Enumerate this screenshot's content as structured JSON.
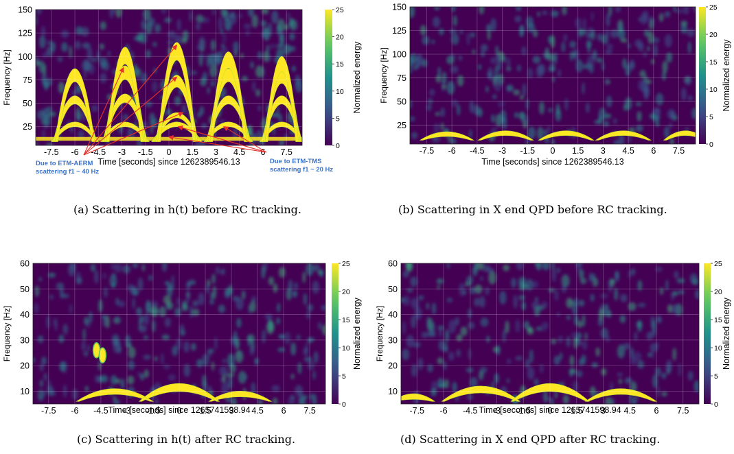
{
  "panels": [
    {
      "id": "a",
      "caption": "(a) Scattering in h(t) before RC tracking.",
      "xlabel": "Time [seconds] since 1262389546.13",
      "ylabel": "Frequency [Hz]",
      "colorbar_label": "Normalized energy",
      "annotations": [
        {
          "lines": [
            "Due to ETM-AERM",
            "scattering f1 ~ 40 Hz"
          ]
        },
        {
          "lines": [
            "Due to ETM-TMS",
            "scattering f1 ~ 20 Hz"
          ]
        }
      ]
    },
    {
      "id": "b",
      "caption": "(b) Scattering in X end QPD before RC tracking.",
      "xlabel": "Time [seconds] since 1262389546.13",
      "ylabel": "Frequency [Hz]",
      "colorbar_label": "Normalized energy"
    },
    {
      "id": "c",
      "caption": "(c) Scattering in h(t) after RC tracking.",
      "xlabel": "Time [seconds] since 1265741598.94",
      "ylabel": "Frequency [Hz]",
      "colorbar_label": "Normalized energy"
    },
    {
      "id": "d",
      "caption": "(d) Scattering in X end QPD after RC tracking.",
      "xlabel": "Time [seconds] since 1265741598.94",
      "ylabel": "Frequency [Hz]",
      "colorbar_label": "Normalized energy"
    }
  ],
  "chart_data": [
    {
      "type": "heatmap",
      "xlabel": "Time [seconds] since 1262389546.13",
      "ylabel": "Frequency [Hz]",
      "x_ticks": [
        "-7.5",
        "-6",
        "-4.5",
        "-3",
        "-1.5",
        "0",
        "1.5",
        "3",
        "4.5",
        "6",
        "7.5"
      ],
      "y_ticks": [
        "25",
        "50",
        "75",
        "100",
        "125",
        "150"
      ],
      "xlim": [
        -8.5,
        8.5
      ],
      "ylim": [
        5,
        150
      ],
      "colorbar_ticks": [
        "0",
        "5",
        "10",
        "15",
        "20",
        "25"
      ],
      "colorbar_range": [
        0,
        25
      ],
      "colorbar_label": "Normalized energy",
      "colormap": "viridis",
      "arches": [
        {
          "center": -6.0,
          "half_width": 1.5,
          "harmonic_peaks_hz": [
            30,
            58,
            87
          ]
        },
        {
          "center": -2.8,
          "half_width": 1.55,
          "harmonic_peaks_hz": [
            30,
            60,
            90,
            110
          ]
        },
        {
          "center": 0.5,
          "half_width": 1.6,
          "harmonic_peaks_hz": [
            30,
            40,
            80,
            115
          ]
        },
        {
          "center": 3.8,
          "half_width": 1.55,
          "harmonic_peaks_hz": [
            30,
            58,
            87,
            105
          ]
        },
        {
          "center": 7.2,
          "half_width": 1.4,
          "harmonic_peaks_hz": [
            30,
            58,
            85,
            100
          ]
        }
      ],
      "baseline_band_hz": 12
    },
    {
      "type": "heatmap",
      "xlabel": "Time [seconds] since 1262389546.13",
      "ylabel": "Frequency [Hz]",
      "x_ticks": [
        "-7.5",
        "-6",
        "-4.5",
        "-3",
        "-1.5",
        "0",
        "1.5",
        "3",
        "4.5",
        "6",
        "7.5"
      ],
      "y_ticks": [
        "25",
        "50",
        "75",
        "100",
        "125",
        "150"
      ],
      "xlim": [
        -8.5,
        8.5
      ],
      "ylim": [
        5,
        150
      ],
      "colorbar_ticks": [
        "0",
        "5",
        "10",
        "15",
        "20",
        "25"
      ],
      "colorbar_range": [
        0,
        25
      ],
      "colorbar_label": "Normalized energy",
      "colormap": "viridis",
      "arches": [
        {
          "center": -6.3,
          "half_width": 1.6,
          "harmonic_peaks_hz": [
            18
          ]
        },
        {
          "center": -2.8,
          "half_width": 1.65,
          "harmonic_peaks_hz": [
            19
          ]
        },
        {
          "center": 0.8,
          "half_width": 1.65,
          "harmonic_peaks_hz": [
            19
          ]
        },
        {
          "center": 4.2,
          "half_width": 1.65,
          "harmonic_peaks_hz": [
            19
          ]
        },
        {
          "center": 7.9,
          "half_width": 1.3,
          "harmonic_peaks_hz": [
            19
          ]
        }
      ]
    },
    {
      "type": "heatmap",
      "xlabel": "Time [seconds] since 1265741598.94",
      "ylabel": "Frequency [Hz]",
      "x_ticks": [
        "-7.5",
        "-6",
        "-4.5",
        "-3",
        "-1.5",
        "0",
        "1.5",
        "3",
        "4.5",
        "6",
        "7.5"
      ],
      "y_ticks": [
        "10",
        "20",
        "30",
        "40",
        "50",
        "60"
      ],
      "xlim": [
        -8.4,
        8.4
      ],
      "ylim": [
        5,
        60
      ],
      "colorbar_ticks": [
        "0",
        "5",
        "10",
        "15",
        "20",
        "25"
      ],
      "colorbar_range": [
        0,
        25
      ],
      "colorbar_label": "Normalized energy",
      "colormap": "viridis",
      "arches": [
        {
          "center": -3.7,
          "half_width": 2.2,
          "harmonic_peaks_hz": [
            11
          ]
        },
        {
          "center": 0.0,
          "half_width": 2.3,
          "harmonic_peaks_hz": [
            13
          ]
        },
        {
          "center": 3.5,
          "half_width": 1.8,
          "harmonic_peaks_hz": [
            10
          ]
        }
      ],
      "hotspots": [
        {
          "t": -4.75,
          "f": 26
        },
        {
          "t": -4.4,
          "f": 24
        }
      ]
    },
    {
      "type": "heatmap",
      "xlabel": "Time [seconds] since 1265741598.94",
      "ylabel": "Frequency [Hz]",
      "x_ticks": [
        "-7.5",
        "-6",
        "-4.5",
        "-3",
        "-1.5",
        "0",
        "1.5",
        "3",
        "4.5",
        "6",
        "7.5"
      ],
      "y_ticks": [
        "10",
        "20",
        "30",
        "40",
        "50",
        "60"
      ],
      "xlim": [
        -8.4,
        8.4
      ],
      "ylim": [
        5,
        60
      ],
      "colorbar_ticks": [
        "0",
        "5",
        "10",
        "15",
        "20",
        "25"
      ],
      "colorbar_range": [
        0,
        25
      ],
      "colorbar_label": "Normalized energy",
      "colormap": "viridis",
      "arches": [
        {
          "center": -7.7,
          "half_width": 1.2,
          "harmonic_peaks_hz": [
            9
          ]
        },
        {
          "center": -3.9,
          "half_width": 2.2,
          "harmonic_peaks_hz": [
            12
          ]
        },
        {
          "center": 0.0,
          "half_width": 2.2,
          "harmonic_peaks_hz": [
            13
          ]
        },
        {
          "center": 4.0,
          "half_width": 2.0,
          "harmonic_peaks_hz": [
            11
          ]
        }
      ]
    }
  ]
}
